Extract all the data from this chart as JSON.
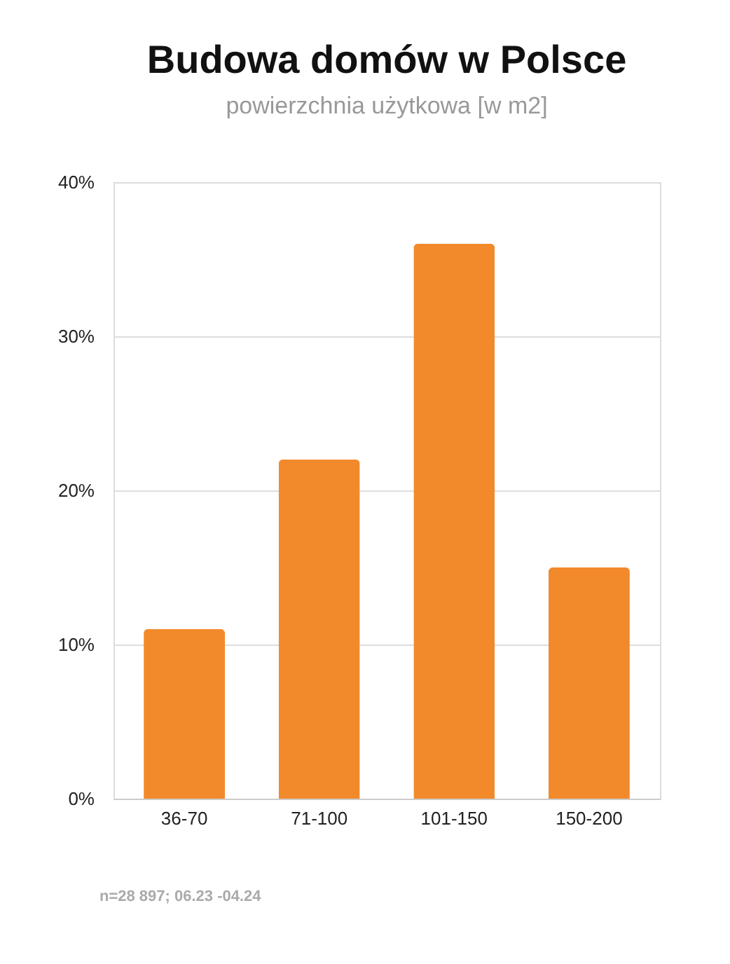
{
  "chart_data": {
    "type": "bar",
    "title": "Budowa domów w Polsce",
    "subtitle": "powierzchnia użytkowa [w m2]",
    "categories": [
      "36-70",
      "71-100",
      "101-150",
      "150-200"
    ],
    "values": [
      11,
      22,
      36,
      15
    ],
    "color": "#f28a2c",
    "ylim": [
      0,
      40
    ],
    "yticks": [
      {
        "value": 0,
        "label": "0%"
      },
      {
        "value": 10,
        "label": "10%"
      },
      {
        "value": 20,
        "label": "20%"
      },
      {
        "value": 30,
        "label": "30%"
      },
      {
        "value": 40,
        "label": "40%"
      }
    ],
    "grid": "y",
    "annotations": [
      "n=28 897; 06.23 -04.24"
    ]
  }
}
